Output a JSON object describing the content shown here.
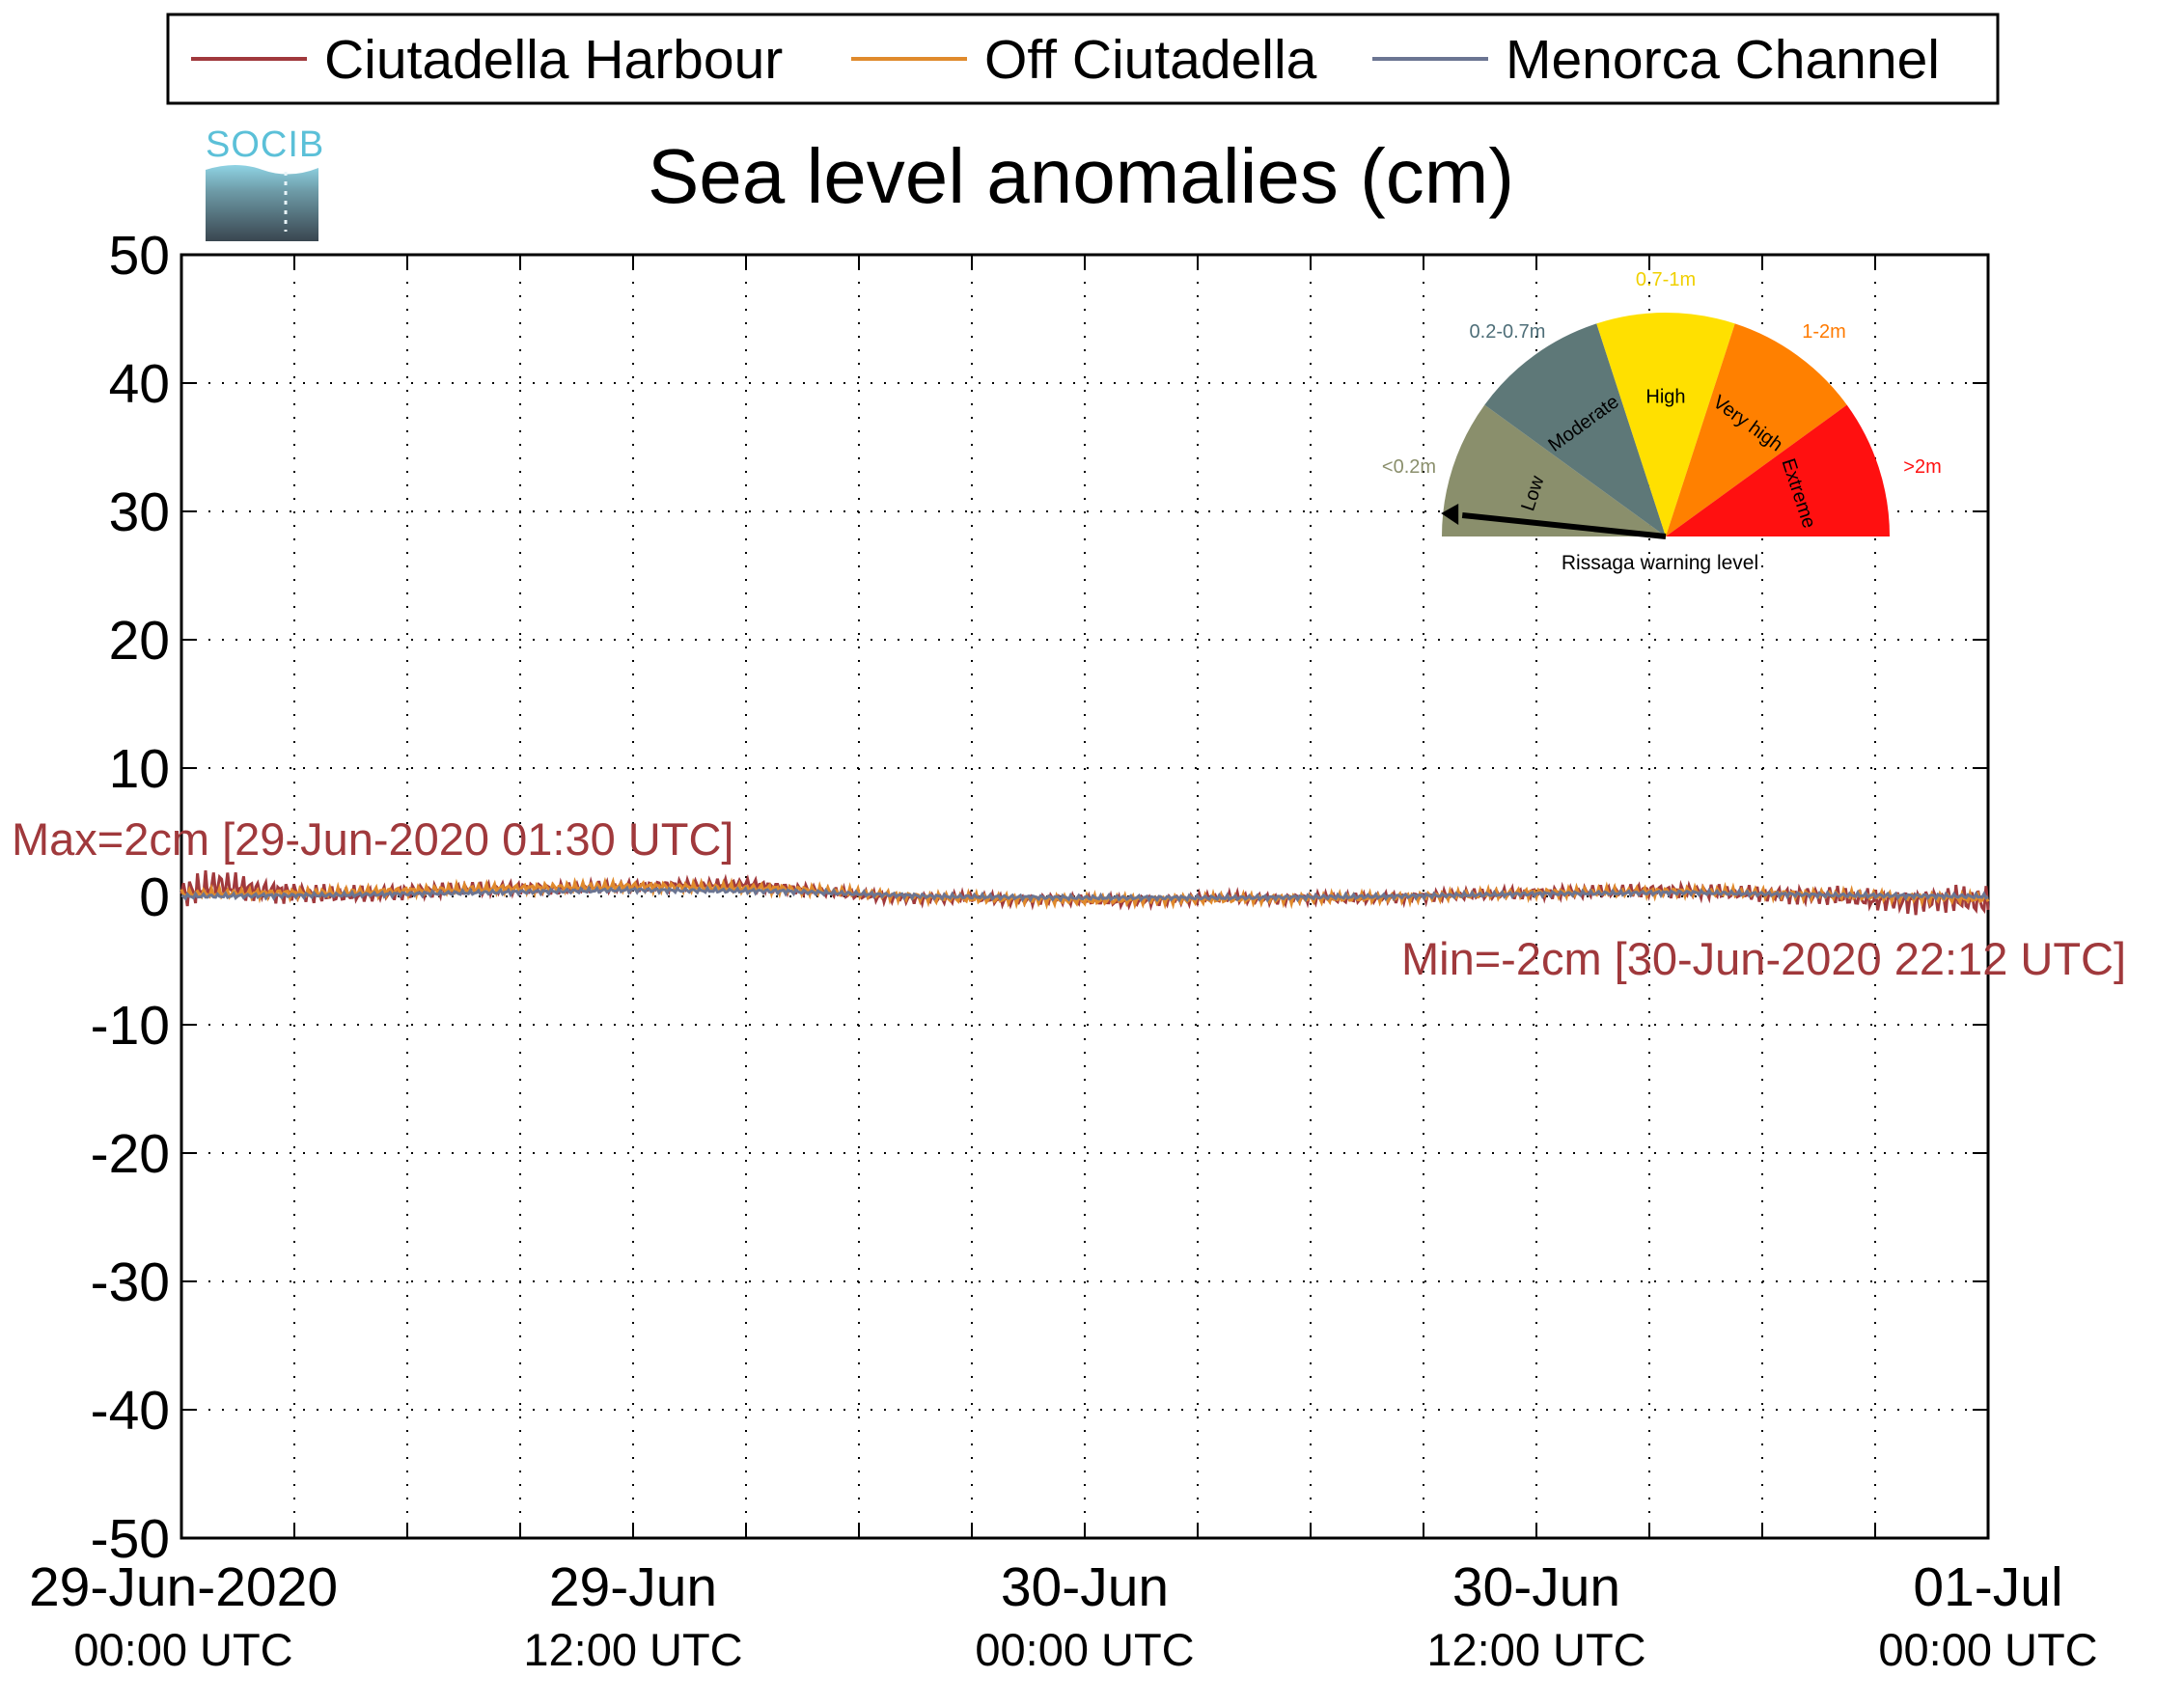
{
  "chart_data": {
    "type": "line",
    "title": "Sea level anomalies (cm)",
    "ylim": [
      -50,
      50
    ],
    "yticks": [
      50,
      40,
      30,
      20,
      10,
      0,
      -10,
      -20,
      -30,
      -40,
      -50
    ],
    "x_range_hours": [
      0,
      48
    ],
    "x_tick_labels": [
      {
        "date": "29-Jun-2020",
        "time": "00:00 UTC",
        "hour": 0
      },
      {
        "date": "29-Jun",
        "time": "12:00 UTC",
        "hour": 12
      },
      {
        "date": "30-Jun",
        "time": "00:00 UTC",
        "hour": 24
      },
      {
        "date": "30-Jun",
        "time": "12:00 UTC",
        "hour": 36
      },
      {
        "date": "01-Jul",
        "time": "00:00 UTC",
        "hour": 48
      }
    ],
    "grid": true,
    "legend_position": "top",
    "series": [
      {
        "name": "Ciutadella Harbour",
        "color": "#a0393c",
        "x": [
          0,
          1,
          2,
          3,
          4,
          5,
          6,
          7,
          8,
          9,
          10,
          11,
          12,
          13,
          14,
          15,
          16,
          17,
          18,
          19,
          20,
          21,
          22,
          23,
          24,
          25,
          26,
          27,
          28,
          29,
          30,
          31,
          32,
          33,
          34,
          35,
          36,
          37,
          38,
          39,
          40,
          41,
          42,
          43,
          44,
          45,
          46,
          47,
          48
        ],
        "y": [
          0.2,
          1.0,
          0.5,
          0.3,
          0.1,
          0.2,
          0.4,
          0.5,
          0.6,
          0.7,
          0.6,
          0.7,
          0.8,
          0.9,
          0.9,
          1.0,
          0.7,
          0.4,
          0.1,
          -0.1,
          -0.2,
          -0.1,
          -0.3,
          -0.2,
          -0.3,
          -0.4,
          -0.3,
          -0.2,
          -0.1,
          -0.2,
          -0.1,
          -0.2,
          -0.1,
          0.0,
          0.1,
          0.2,
          0.3,
          0.3,
          0.4,
          0.5,
          0.4,
          0.3,
          0.2,
          0.1,
          0.0,
          -0.3,
          -0.4,
          -0.2,
          -0.5
        ],
        "noise_amplitude": 1.2
      },
      {
        "name": "Off Ciutadella",
        "color": "#e08a2c",
        "x": [
          0,
          4,
          8,
          12,
          16,
          20,
          24,
          28,
          32,
          36,
          40,
          44,
          48
        ],
        "y": [
          0.2,
          0.3,
          0.6,
          0.8,
          0.6,
          -0.1,
          -0.3,
          -0.2,
          -0.1,
          0.3,
          0.4,
          0.1,
          -0.2
        ],
        "noise_amplitude": 0.4
      },
      {
        "name": "Menorca Channel",
        "color": "#6b7592",
        "x": [
          0,
          4,
          8,
          12,
          16,
          20,
          24,
          28,
          32,
          36,
          40,
          44,
          48
        ],
        "y": [
          0.0,
          0.1,
          0.3,
          0.5,
          0.4,
          0.0,
          -0.1,
          -0.1,
          0.0,
          0.2,
          0.3,
          0.1,
          0.0
        ],
        "noise_amplitude": 0.2
      }
    ],
    "annotations": {
      "max": "Max=2cm [29-Jun-2020 01:30 UTC]",
      "min": "Min=-2cm [30-Jun-2020 22:12 UTC]",
      "color": "#a0393c"
    }
  },
  "legend": {
    "items": [
      {
        "label": "Ciutadella Harbour",
        "color": "#a0393c"
      },
      {
        "label": "Off Ciutadella",
        "color": "#e08a2c"
      },
      {
        "label": "Menorca Channel",
        "color": "#6b7592"
      }
    ]
  },
  "logo": {
    "text": "SOCIB",
    "color": "#5bc0d8"
  },
  "gauge": {
    "title": "Rissaga warning level",
    "current_level": "Low",
    "segments": [
      {
        "label": "Low",
        "range": "<0.2m",
        "color": "#8a8f6c",
        "range_color": "#8a8f6c"
      },
      {
        "label": "Moderate",
        "range": "0.2-0.7m",
        "color": "#5e7878",
        "range_color": "#4e6e78"
      },
      {
        "label": "High",
        "range": "0.7-1m",
        "color": "#ffe000",
        "range_color": "#f0d000"
      },
      {
        "label": "Very high",
        "range": "1-2m",
        "color": "#ff8000",
        "range_color": "#ff7a00"
      },
      {
        "label": "Extreme",
        "range": ">2m",
        "color": "#ff1010",
        "range_color": "#ff1010"
      }
    ]
  }
}
